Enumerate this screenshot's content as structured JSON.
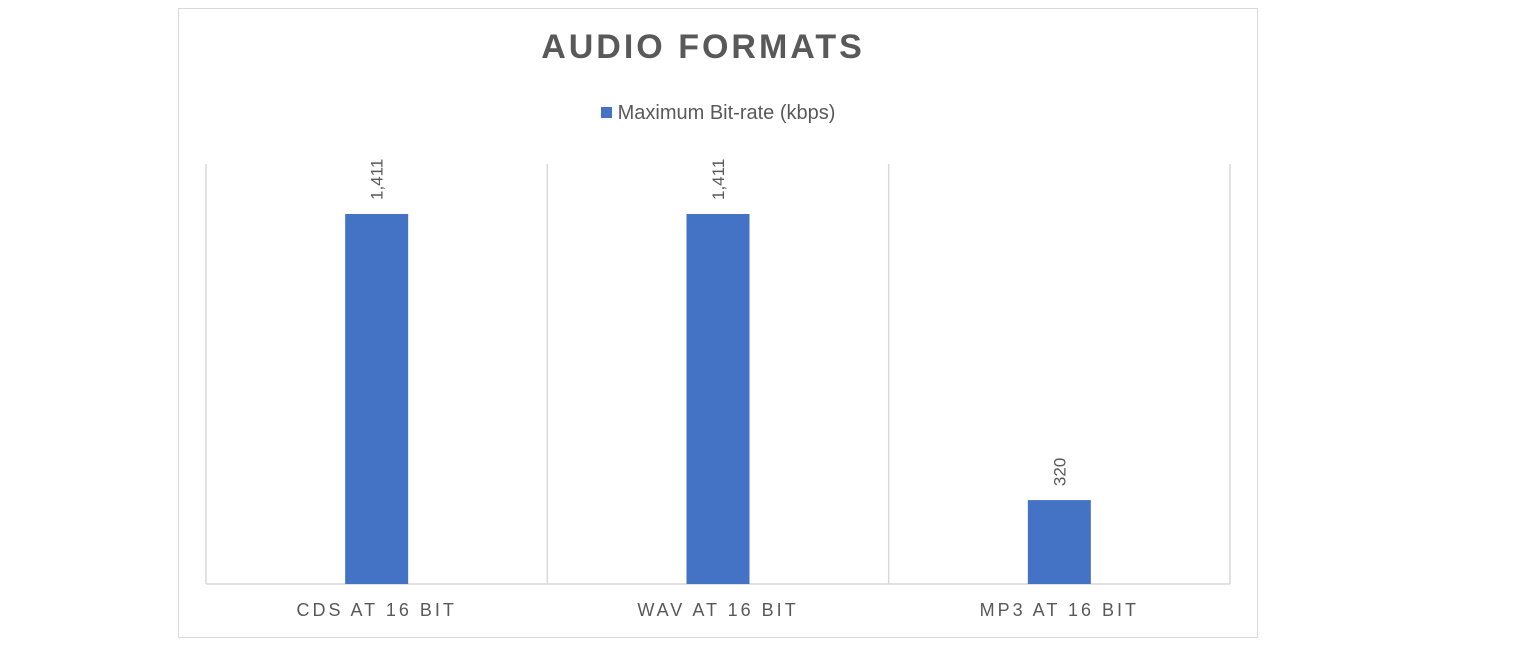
{
  "chart_data": {
    "type": "bar",
    "title": "AUDIO FORMATS",
    "categories": [
      "CDS AT 16 BIT",
      "WAV AT 16 BIT",
      "MP3 AT 16 BIT"
    ],
    "series": [
      {
        "name": "Maximum Bit-rate (kbps)",
        "values": [
          1411,
          1411,
          320
        ],
        "color": "#4472C4"
      }
    ],
    "data_labels": [
      "1,411",
      "1,411",
      "320"
    ],
    "ylim": [
      0,
      1600
    ],
    "gridlines": false,
    "legend_position": "top"
  }
}
